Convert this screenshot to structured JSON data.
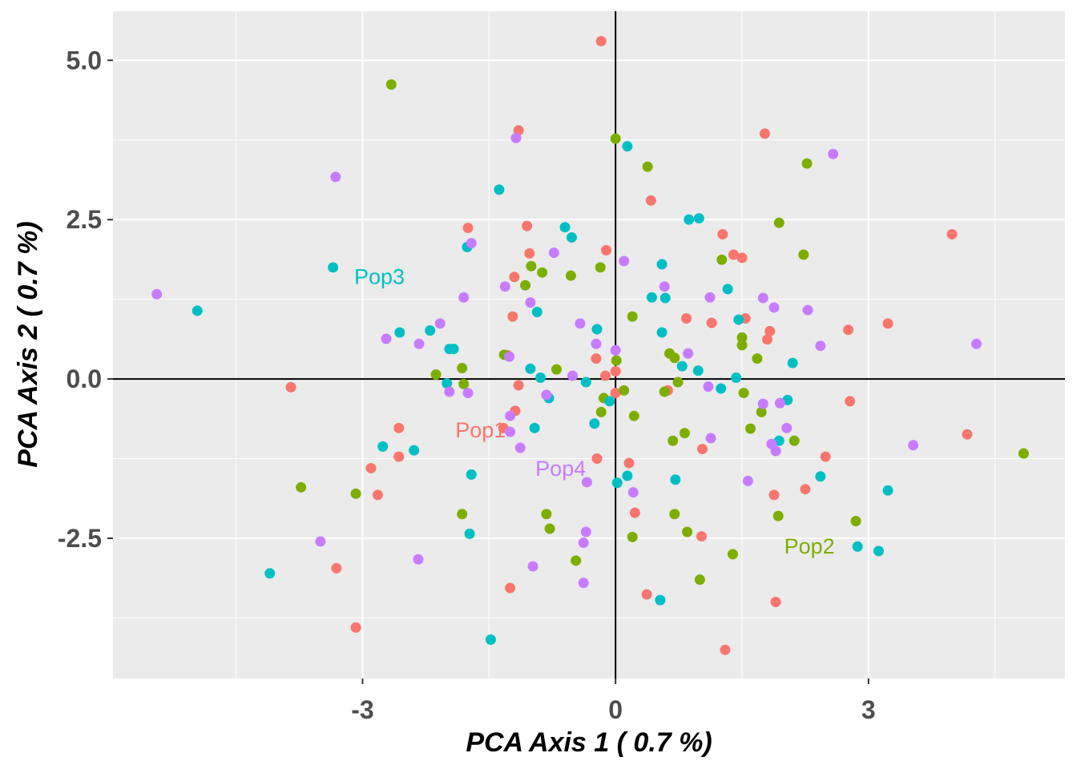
{
  "chart_data": {
    "type": "scatter",
    "title": "",
    "xlabel": "PCA Axis 1 ( 0.7 %)",
    "ylabel": "PCA Axis 2 ( 0.7 %)",
    "xlim": [
      -5.96,
      5.33
    ],
    "ylim": [
      -4.7,
      5.77
    ],
    "x_ticks": [
      -3,
      0,
      3
    ],
    "x_tick_labels": [
      "-3",
      "0",
      "3"
    ],
    "y_ticks": [
      -2.5,
      0.0,
      2.5,
      5.0
    ],
    "y_tick_labels": [
      "-2.5",
      "0.0",
      "2.5",
      "5.0"
    ],
    "x_minor": [
      -4.5,
      -1.5,
      1.5,
      4.5
    ],
    "y_minor": [
      -3.75,
      -1.25,
      1.25,
      3.75
    ],
    "grid": true,
    "reference_lines": {
      "x": 0,
      "y": 0
    },
    "legend": "none",
    "series": [
      {
        "name": "Pop1",
        "color": "#F8766D",
        "label": {
          "text": "Pop1",
          "x": -1.9,
          "y": -0.83
        },
        "points": [
          [
            -0.17,
            5.3
          ],
          [
            -1.15,
            3.9
          ],
          [
            1.77,
            3.85
          ],
          [
            0.42,
            2.8
          ],
          [
            -1.75,
            2.37
          ],
          [
            -1.05,
            2.4
          ],
          [
            3.99,
            2.27
          ],
          [
            1.27,
            2.27
          ],
          [
            1.4,
            1.95
          ],
          [
            1.5,
            1.9
          ],
          [
            -1.2,
            1.6
          ],
          [
            -1.02,
            1.97
          ],
          [
            -0.11,
            2.02
          ],
          [
            -1.22,
            0.98
          ],
          [
            0.84,
            0.95
          ],
          [
            1.14,
            0.88
          ],
          [
            1.54,
            0.95
          ],
          [
            1.83,
            0.75
          ],
          [
            2.76,
            0.77
          ],
          [
            3.23,
            0.87
          ],
          [
            1.8,
            0.62
          ],
          [
            -1.28,
            0.37
          ],
          [
            -1.15,
            -0.1
          ],
          [
            -0.23,
            0.32
          ],
          [
            -0.12,
            0.05
          ],
          [
            0.0,
            0.12
          ],
          [
            0.0,
            -0.22
          ],
          [
            -3.85,
            -0.13
          ],
          [
            2.78,
            -0.35
          ],
          [
            -2.57,
            -0.77
          ],
          [
            -1.19,
            -0.5
          ],
          [
            -1.33,
            -0.77
          ],
          [
            0.62,
            -0.18
          ],
          [
            1.03,
            -1.1
          ],
          [
            4.17,
            -0.87
          ],
          [
            -2.57,
            -1.22
          ],
          [
            -0.22,
            -1.25
          ],
          [
            0.16,
            -1.32
          ],
          [
            2.49,
            -1.22
          ],
          [
            -2.9,
            -1.4
          ],
          [
            -2.82,
            -1.82
          ],
          [
            1.88,
            -1.82
          ],
          [
            2.25,
            -1.73
          ],
          [
            0.23,
            -2.1
          ],
          [
            -3.31,
            -2.97
          ],
          [
            1.02,
            -2.47
          ],
          [
            -1.25,
            -3.28
          ],
          [
            0.37,
            -3.38
          ],
          [
            1.9,
            -3.5
          ],
          [
            -3.08,
            -3.9
          ],
          [
            1.3,
            -4.25
          ]
        ]
      },
      {
        "name": "Pop2",
        "color": "#7CAE00",
        "label": {
          "text": "Pop2",
          "x": 2.0,
          "y": -2.65
        },
        "points": [
          [
            -2.66,
            4.62
          ],
          [
            0.0,
            3.77
          ],
          [
            0.38,
            3.33
          ],
          [
            2.27,
            3.38
          ],
          [
            1.94,
            2.45
          ],
          [
            2.23,
            1.95
          ],
          [
            1.26,
            1.87
          ],
          [
            -1.0,
            1.77
          ],
          [
            -0.87,
            1.67
          ],
          [
            -1.07,
            1.47
          ],
          [
            -0.53,
            1.62
          ],
          [
            -0.18,
            1.75
          ],
          [
            0.2,
            0.98
          ],
          [
            -1.32,
            0.38
          ],
          [
            0.64,
            0.4
          ],
          [
            0.7,
            0.33
          ],
          [
            1.5,
            0.65
          ],
          [
            1.5,
            0.53
          ],
          [
            1.68,
            0.32
          ],
          [
            -2.13,
            0.07
          ],
          [
            -1.82,
            0.17
          ],
          [
            -1.8,
            -0.08
          ],
          [
            -0.7,
            0.15
          ],
          [
            0.01,
            0.29
          ],
          [
            0.74,
            -0.05
          ],
          [
            -0.14,
            -0.3
          ],
          [
            0.1,
            -0.18
          ],
          [
            0.58,
            -0.2
          ],
          [
            1.52,
            -0.22
          ],
          [
            -0.17,
            -0.52
          ],
          [
            0.22,
            -0.58
          ],
          [
            1.73,
            -0.52
          ],
          [
            1.6,
            -0.78
          ],
          [
            0.68,
            -0.97
          ],
          [
            0.82,
            -0.85
          ],
          [
            2.12,
            -0.97
          ],
          [
            4.84,
            -1.17
          ],
          [
            -3.73,
            -1.7
          ],
          [
            -3.08,
            -1.8
          ],
          [
            -1.82,
            -2.12
          ],
          [
            -0.82,
            -2.12
          ],
          [
            -0.78,
            -2.35
          ],
          [
            0.7,
            -2.12
          ],
          [
            1.93,
            -2.15
          ],
          [
            2.85,
            -2.23
          ],
          [
            0.2,
            -2.48
          ],
          [
            0.85,
            -2.4
          ],
          [
            -0.47,
            -2.85
          ],
          [
            1.39,
            -2.75
          ],
          [
            1.0,
            -3.15
          ]
        ]
      },
      {
        "name": "Pop3",
        "color": "#00BFC4",
        "label": {
          "text": "Pop3",
          "x": -3.1,
          "y": 1.58
        },
        "points": [
          [
            0.14,
            3.65
          ],
          [
            -1.38,
            2.97
          ],
          [
            -0.6,
            2.38
          ],
          [
            -0.52,
            2.22
          ],
          [
            0.87,
            2.5
          ],
          [
            0.99,
            2.52
          ],
          [
            -1.76,
            2.07
          ],
          [
            0.55,
            1.8
          ],
          [
            1.33,
            1.41
          ],
          [
            -3.35,
            1.75
          ],
          [
            -4.96,
            1.07
          ],
          [
            -0.93,
            1.05
          ],
          [
            0.43,
            1.28
          ],
          [
            0.59,
            1.27
          ],
          [
            0.55,
            0.73
          ],
          [
            1.46,
            0.93
          ],
          [
            -0.22,
            0.78
          ],
          [
            -2.56,
            0.73
          ],
          [
            -2.2,
            0.76
          ],
          [
            -1.92,
            0.47
          ],
          [
            -1.97,
            0.47
          ],
          [
            0.79,
            0.2
          ],
          [
            0.98,
            0.13
          ],
          [
            2.1,
            0.25
          ],
          [
            -1.01,
            0.16
          ],
          [
            -0.89,
            0.02
          ],
          [
            -0.35,
            -0.05
          ],
          [
            1.43,
            0.02
          ],
          [
            -2.0,
            -0.07
          ],
          [
            -0.79,
            -0.3
          ],
          [
            -0.07,
            -0.35
          ],
          [
            1.25,
            -0.15
          ],
          [
            2.04,
            -0.33
          ],
          [
            -0.25,
            -0.7
          ],
          [
            -0.96,
            -0.77
          ],
          [
            1.94,
            -0.97
          ],
          [
            -2.76,
            -1.06
          ],
          [
            -2.39,
            -1.12
          ],
          [
            -1.71,
            -1.5
          ],
          [
            0.14,
            -1.52
          ],
          [
            0.71,
            -1.58
          ],
          [
            0.02,
            -1.63
          ],
          [
            2.43,
            -1.53
          ],
          [
            3.23,
            -1.75
          ],
          [
            -1.73,
            -2.43
          ],
          [
            2.87,
            -2.63
          ],
          [
            3.12,
            -2.7
          ],
          [
            -4.1,
            -3.05
          ],
          [
            0.53,
            -3.47
          ],
          [
            -1.48,
            -4.09
          ]
        ]
      },
      {
        "name": "Pop4",
        "color": "#C77CFF",
        "label": {
          "text": "Pop4",
          "x": -0.95,
          "y": -1.43
        },
        "points": [
          [
            -3.32,
            3.17
          ],
          [
            -1.18,
            3.78
          ],
          [
            2.58,
            3.53
          ],
          [
            -1.71,
            2.13
          ],
          [
            -0.73,
            1.98
          ],
          [
            0.1,
            1.85
          ],
          [
            -1.31,
            1.45
          ],
          [
            0.58,
            1.45
          ],
          [
            -5.44,
            1.33
          ],
          [
            -1.8,
            1.28
          ],
          [
            1.12,
            1.28
          ],
          [
            1.75,
            1.27
          ],
          [
            1.88,
            1.12
          ],
          [
            2.28,
            1.08
          ],
          [
            -1.01,
            1.2
          ],
          [
            -2.08,
            0.87
          ],
          [
            -0.42,
            0.87
          ],
          [
            -2.72,
            0.63
          ],
          [
            -2.33,
            0.55
          ],
          [
            -0.23,
            0.55
          ],
          [
            2.43,
            0.52
          ],
          [
            4.28,
            0.55
          ],
          [
            -1.26,
            0.35
          ],
          [
            0.86,
            0.4
          ],
          [
            0.0,
            0.45
          ],
          [
            -0.51,
            0.05
          ],
          [
            -1.97,
            -0.2
          ],
          [
            -1.75,
            -0.22
          ],
          [
            -0.82,
            -0.25
          ],
          [
            1.1,
            -0.12
          ],
          [
            1.75,
            -0.39
          ],
          [
            1.95,
            -0.38
          ],
          [
            -1.25,
            -0.58
          ],
          [
            -1.25,
            -0.83
          ],
          [
            2.03,
            -0.77
          ],
          [
            1.13,
            -0.93
          ],
          [
            -1.13,
            -1.08
          ],
          [
            1.85,
            -1.02
          ],
          [
            1.9,
            -1.13
          ],
          [
            3.53,
            -1.04
          ],
          [
            -0.34,
            -1.62
          ],
          [
            0.21,
            -1.78
          ],
          [
            1.57,
            -1.6
          ],
          [
            -0.35,
            -2.4
          ],
          [
            -0.38,
            -2.57
          ],
          [
            -3.5,
            -2.55
          ],
          [
            -2.34,
            -2.83
          ],
          [
            -0.98,
            -2.94
          ],
          [
            -0.38,
            -3.2
          ]
        ]
      }
    ]
  }
}
